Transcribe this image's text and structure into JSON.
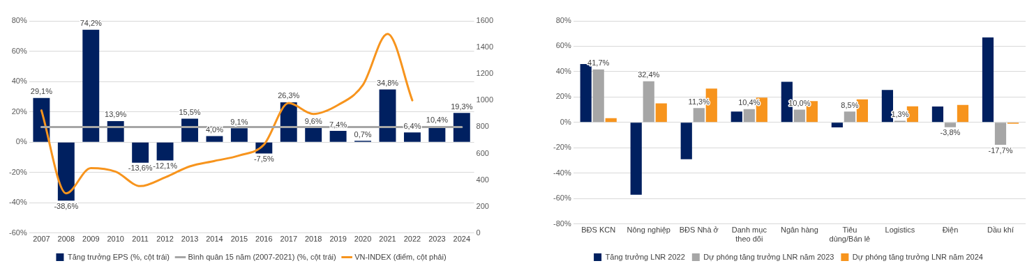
{
  "chart_data": [
    {
      "type": "bar",
      "categories": [
        "2007",
        "2008",
        "2009",
        "2010",
        "2011",
        "2012",
        "2013",
        "2014",
        "2015",
        "2016",
        "2017",
        "2018",
        "2019",
        "2020",
        "2021",
        "2022",
        "2023",
        "2024"
      ],
      "series": [
        {
          "name": "Tăng trưởng EPS (%, cột trái)",
          "color": "#002060",
          "values": [
            29.1,
            -38.6,
            74.2,
            13.9,
            -13.6,
            -12.1,
            15.5,
            4.0,
            9.1,
            -7.5,
            26.3,
            9.6,
            7.4,
            0.7,
            34.8,
            6.4,
            10.4,
            19.3
          ],
          "value_labels": [
            "29,1%",
            "-38,6%",
            "74,2%",
            "13,9%",
            "-13,6%",
            "-12,1%",
            "15,5%",
            "4,0%",
            "9,1%",
            "-7,5%",
            "26,3%",
            "9,6%",
            "7,4%",
            "0,7%",
            "34,8%",
            "6,4%",
            "10,4%",
            "19,3%"
          ]
        },
        {
          "name": "Bình quân 15 năm (2007-2021) (%, cột trái)",
          "type": "line",
          "color": "#a6a6a6",
          "values": [
            10,
            10,
            10,
            10,
            10,
            10,
            10,
            10,
            10,
            10,
            10,
            10,
            10,
            10,
            10,
            10,
            10,
            10
          ]
        },
        {
          "name": "VN-INDEX (điểm, cột phải)",
          "type": "line",
          "axis": "y2",
          "color": "#f7941d",
          "values": [
            925,
            300,
            490,
            463,
            354,
            420,
            503,
            544,
            585,
            667,
            980,
            898,
            966,
            1116,
            1502,
            1001,
            null,
            null
          ]
        }
      ],
      "ylim": [
        -60,
        80
      ],
      "yticks": [
        {
          "value": -60,
          "label": "-60%"
        },
        {
          "value": -40,
          "label": "-40%"
        },
        {
          "value": -20,
          "label": "-20%"
        },
        {
          "value": 0,
          "label": "0%"
        },
        {
          "value": 20,
          "label": "20%"
        },
        {
          "value": 40,
          "label": "40%"
        },
        {
          "value": 60,
          "label": "60%"
        },
        {
          "value": 80,
          "label": "80%"
        }
      ],
      "y2lim": [
        0,
        1600
      ],
      "y2ticks": [
        0,
        200,
        400,
        600,
        800,
        1000,
        1200,
        1400,
        1600
      ],
      "grid": "y",
      "legend": "bottom"
    },
    {
      "type": "bar",
      "categories": [
        "BĐS KCN",
        "Nông nghiệp",
        "BĐS Nhà ở",
        "Danh mục theo dõi",
        "Ngân hàng",
        "Tiêu dùng/Bán lẻ",
        "Logistics",
        "Điện",
        "Dầu khí"
      ],
      "series": [
        {
          "name": "Tăng trưởng LNR 2022",
          "color": "#002060",
          "values": [
            46,
            -57,
            -29,
            8.5,
            32,
            -4,
            25.5,
            12.5,
            67
          ]
        },
        {
          "name": "Dự phóng tăng trưởng LNR năm 2023",
          "color": "#a6a6a6",
          "values": [
            41.7,
            32.4,
            11.3,
            10.4,
            10.0,
            8.5,
            1.3,
            -3.8,
            -17.7
          ],
          "value_labels": [
            "41,7%",
            "32,4%",
            "11,3%",
            "10,4%",
            "10,0%",
            "8,5%",
            "1,3%",
            "-3,8%",
            "-17,7%"
          ]
        },
        {
          "name": "Dự phóng tăng trưởng LNR năm 2024",
          "color": "#f7941d",
          "values": [
            3.3,
            15,
            26.7,
            19.5,
            16.7,
            18.2,
            12.6,
            13.8,
            -0.3
          ]
        }
      ],
      "ylim": [
        -80,
        80
      ],
      "yticks": [
        {
          "value": -80,
          "label": "-80%"
        },
        {
          "value": -60,
          "label": "-60%"
        },
        {
          "value": -40,
          "label": "-40%"
        },
        {
          "value": -20,
          "label": "-20%"
        },
        {
          "value": 0,
          "label": "0%"
        },
        {
          "value": 20,
          "label": "20%"
        },
        {
          "value": 40,
          "label": "40%"
        },
        {
          "value": 60,
          "label": "60%"
        },
        {
          "value": 80,
          "label": "80%"
        }
      ],
      "grid": "y",
      "legend": "bottom"
    }
  ]
}
